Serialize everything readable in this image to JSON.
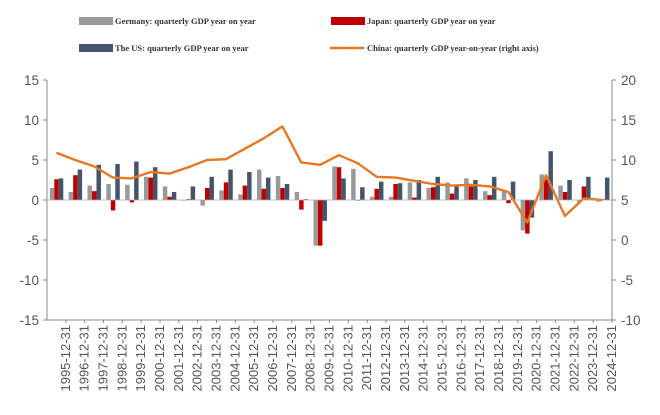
{
  "chart_data": {
    "type": "bar+line",
    "legend": [
      {
        "label": "Germany: quarterly GDP year on year",
        "color": "#999999",
        "kind": "bar"
      },
      {
        "label": "Japan: quarterly GDP year on year",
        "color": "#C00000",
        "kind": "bar"
      },
      {
        "label": "The US: quarterly GDP year on year",
        "color": "#44546A",
        "kind": "bar"
      },
      {
        "label": "China: quarterly GDP year-on-year (right axis)",
        "color": "#E87722",
        "kind": "line"
      }
    ],
    "left_axis": {
      "min": -15,
      "max": 15,
      "ticks": [
        "15",
        "10",
        "5",
        "0",
        "-5",
        "-10",
        "-15"
      ]
    },
    "right_axis": {
      "min": -10,
      "max": 20,
      "ticks": [
        "20",
        "15",
        "10",
        "5",
        "0",
        "-5",
        "-10"
      ]
    },
    "x_labels": [
      "1995-12-31",
      "1996-12-31",
      "1997-12-31",
      "1998-12-31",
      "1999-12-31",
      "2000-12-31",
      "2001-12-31",
      "2002-12-31",
      "2003-12-31",
      "2004-12-31",
      "2005-12-31",
      "2006-12-31",
      "2007-12-31",
      "2008-12-31",
      "2009-12-31",
      "2010-12-31",
      "2011-12-31",
      "2012-12-31",
      "2013-12-31",
      "2014-12-31",
      "2015-12-31",
      "2016-12-31",
      "2017-12-31",
      "2018-12-31",
      "2019-12-31",
      "2020-12-31",
      "2021-12-31",
      "2022-12-31",
      "2023-12-31",
      "2024-12-31"
    ],
    "years": [
      1995,
      1996,
      1997,
      1998,
      1999,
      2000,
      2001,
      2002,
      2003,
      2004,
      2005,
      2006,
      2007,
      2008,
      2009,
      2010,
      2011,
      2012,
      2013,
      2014,
      2015,
      2016,
      2017,
      2018,
      2019,
      2020,
      2021,
      2022,
      2023,
      2024
    ],
    "series": [
      {
        "name": "Germany",
        "annual": [
          1.5,
          1.0,
          1.8,
          2.0,
          1.9,
          2.9,
          1.7,
          0.0,
          -0.7,
          1.2,
          0.7,
          3.8,
          3.0,
          1.0,
          -5.7,
          4.2,
          3.9,
          0.4,
          0.4,
          2.2,
          1.5,
          2.2,
          2.7,
          1.1,
          1.1,
          -3.8,
          3.2,
          1.8,
          -0.3,
          -0.2
        ]
      },
      {
        "name": "Japan",
        "annual": [
          2.6,
          3.1,
          1.1,
          -1.3,
          -0.3,
          2.8,
          0.4,
          0.1,
          1.5,
          2.2,
          1.8,
          1.4,
          1.5,
          -1.2,
          -5.7,
          4.1,
          0.0,
          1.4,
          2.0,
          0.3,
          1.6,
          0.8,
          1.7,
          0.6,
          -0.4,
          -4.2,
          2.6,
          1.0,
          1.7,
          0.1
        ]
      },
      {
        "name": "The US",
        "annual": [
          2.7,
          3.8,
          4.4,
          4.5,
          4.8,
          4.1,
          1.0,
          1.7,
          2.9,
          3.8,
          3.5,
          2.8,
          2.0,
          0.1,
          -2.6,
          2.7,
          1.6,
          2.3,
          2.1,
          2.5,
          2.9,
          1.8,
          2.5,
          2.9,
          2.3,
          -2.2,
          6.1,
          2.5,
          2.9,
          2.8
        ]
      },
      {
        "name": "China",
        "annual": [
          10.9,
          10.0,
          9.2,
          7.8,
          7.7,
          8.5,
          8.3,
          9.1,
          10.0,
          10.1,
          11.4,
          12.7,
          14.2,
          9.7,
          9.4,
          10.6,
          9.6,
          7.9,
          7.8,
          7.4,
          7.0,
          6.8,
          6.9,
          6.7,
          6.0,
          2.2,
          8.1,
          3.0,
          5.2,
          5.0
        ]
      }
    ]
  }
}
